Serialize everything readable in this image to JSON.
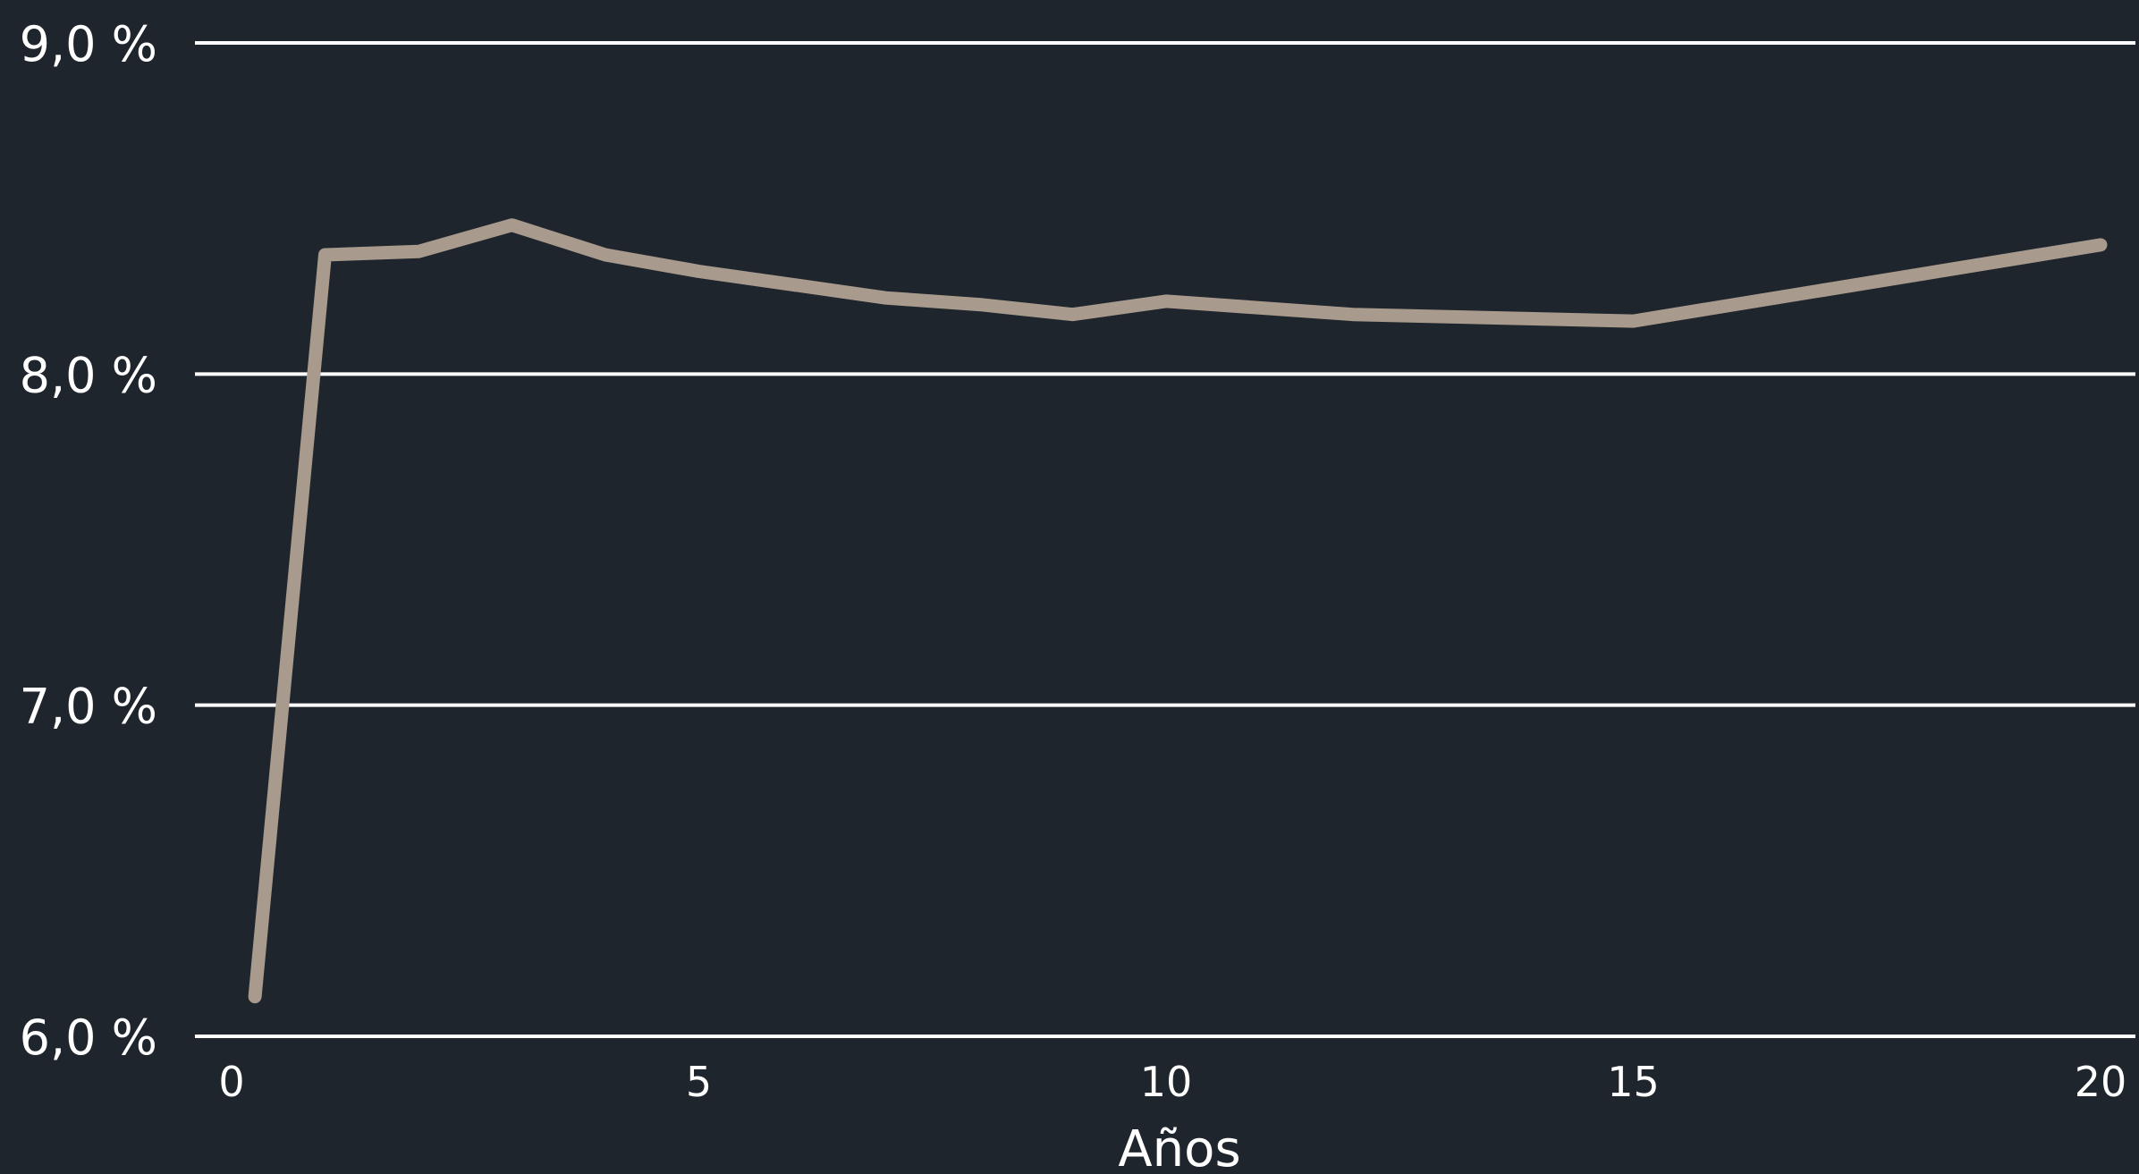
{
  "chart_data": {
    "type": "line",
    "title": "",
    "xlabel": "Años",
    "ylabel": "",
    "xlim": [
      0,
      20
    ],
    "ylim": [
      6.0,
      9.0
    ],
    "x_ticks": [
      {
        "value": 0,
        "label": "0"
      },
      {
        "value": 5,
        "label": "5"
      },
      {
        "value": 10,
        "label": "10"
      },
      {
        "value": 15,
        "label": "15"
      },
      {
        "value": 20,
        "label": "20"
      }
    ],
    "y_ticks": [
      {
        "value": 6.0,
        "label": "6,0 %"
      },
      {
        "value": 7.0,
        "label": "7,0 %"
      },
      {
        "value": 8.0,
        "label": "8,0 %"
      },
      {
        "value": 9.0,
        "label": "9,0 %"
      }
    ],
    "grid": true,
    "legend": "none",
    "colors": {
      "background": "#1f252d",
      "grid": "#ffffff",
      "text": "#ffffff",
      "line": "#a89a8c"
    },
    "series": [
      {
        "x": [
          0.25,
          1,
          2,
          3,
          4,
          5,
          6,
          7,
          8,
          9,
          10,
          12,
          15,
          20
        ],
        "values": [
          6.12,
          8.36,
          8.37,
          8.45,
          8.36,
          8.31,
          8.27,
          8.23,
          8.21,
          8.18,
          8.22,
          8.18,
          8.16,
          8.39
        ]
      }
    ]
  }
}
